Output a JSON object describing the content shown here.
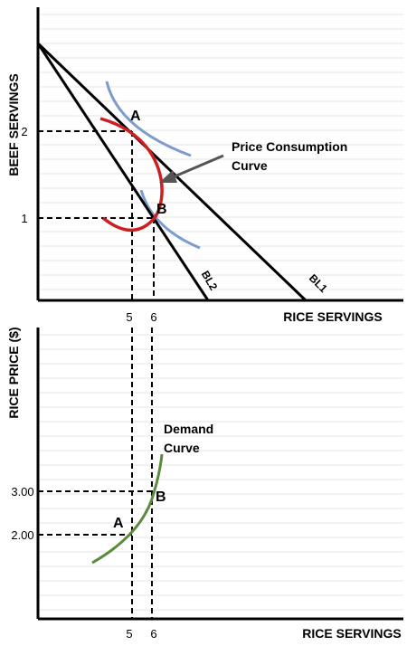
{
  "top": {
    "y_axis_label": "BEEF SERVINGS",
    "x_axis_label": "RICE SERVINGS",
    "y_ticks": [
      "2",
      "1"
    ],
    "x_ticks": [
      "5",
      "6"
    ],
    "point_a": "A",
    "point_b": "B",
    "budget_line_1": "BL1",
    "budget_line_2": "BL2",
    "pcc_label_line1": "Price Consumption",
    "pcc_label_line2": "Curve"
  },
  "bottom": {
    "y_axis_label": "RICE PRICE ($)",
    "x_axis_label": "RICE SERVINGS",
    "y_ticks": [
      "3.00",
      "2.00"
    ],
    "x_ticks": [
      "5",
      "6"
    ],
    "point_a": "A",
    "point_b": "B",
    "demand_label_line1": "Demand",
    "demand_label_line2": "Curve"
  },
  "colors": {
    "axis": "#000000",
    "budget_lines": "#000000",
    "indifference_curves": "#7b9ccc",
    "price_consumption_curve": "#cc1f1f",
    "demand_curve": "#5a8a3c",
    "grid": "#e6e6e6",
    "arrow": "#555555"
  }
}
